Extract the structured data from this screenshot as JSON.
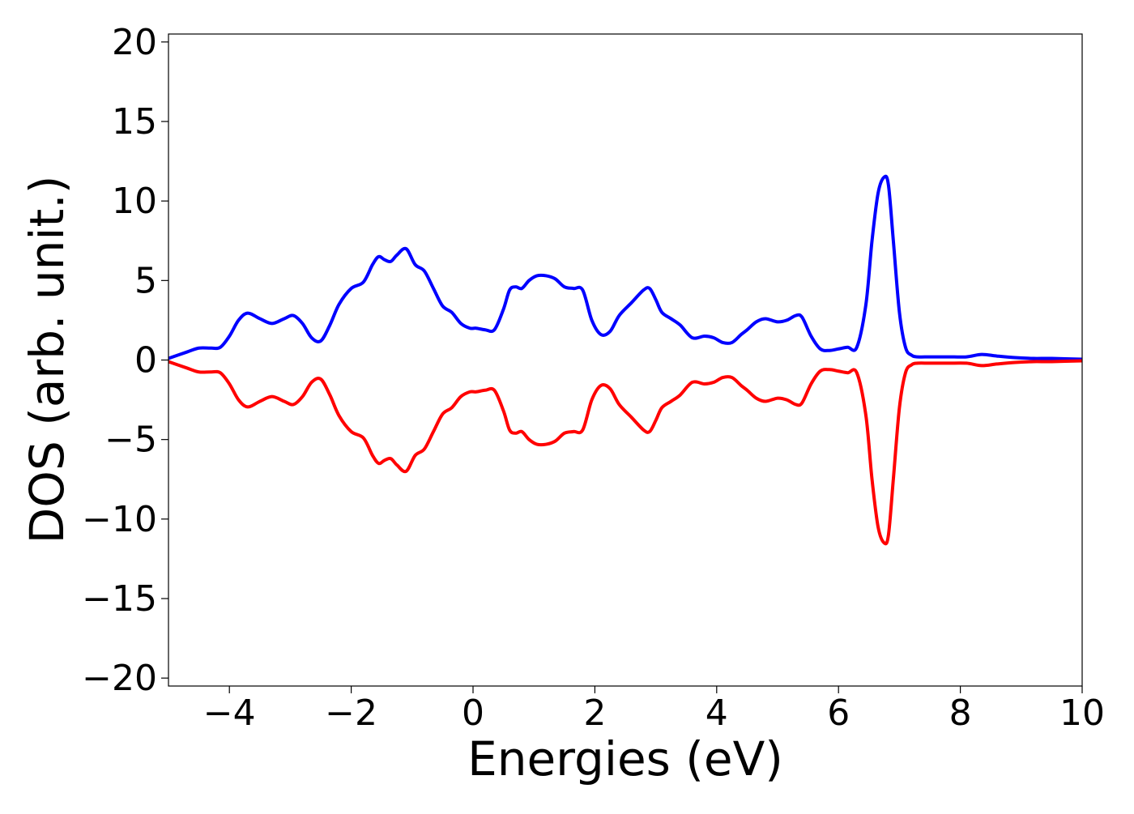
{
  "chart_data": {
    "type": "line",
    "title": "",
    "xlabel": "Energies (eV)",
    "ylabel": "DOS (arb. unit.)",
    "xlim": [
      -5,
      10
    ],
    "ylim": [
      -20.5,
      20.5
    ],
    "xticks": [
      -4,
      -2,
      0,
      2,
      4,
      6,
      8,
      10
    ],
    "yticks": [
      -20,
      -15,
      -10,
      -5,
      0,
      5,
      10,
      15,
      20
    ],
    "xtick_labels": [
      "−4",
      "−2",
      "0",
      "2",
      "4",
      "6",
      "8",
      "10"
    ],
    "ytick_labels": [
      "−20",
      "−15",
      "−10",
      "−5",
      "0",
      "5",
      "10",
      "15",
      "20"
    ],
    "grid": false,
    "legend": "none",
    "series": [
      {
        "color": "#0000ff",
        "x": [
          -5.0,
          -4.7,
          -4.5,
          -4.3,
          -4.15,
          -4.0,
          -3.85,
          -3.7,
          -3.5,
          -3.3,
          -3.1,
          -2.95,
          -2.8,
          -2.65,
          -2.5,
          -2.35,
          -2.2,
          -2.0,
          -1.8,
          -1.65,
          -1.55,
          -1.45,
          -1.35,
          -1.25,
          -1.1,
          -0.95,
          -0.8,
          -0.65,
          -0.5,
          -0.35,
          -0.2,
          -0.05,
          0.05,
          0.2,
          0.35,
          0.5,
          0.6,
          0.7,
          0.8,
          0.92,
          1.05,
          1.2,
          1.35,
          1.5,
          1.65,
          1.8,
          1.95,
          2.1,
          2.25,
          2.4,
          2.6,
          2.8,
          2.9,
          3.0,
          3.1,
          3.25,
          3.4,
          3.6,
          3.8,
          3.95,
          4.1,
          4.25,
          4.4,
          4.5,
          4.65,
          4.8,
          5.0,
          5.15,
          5.3,
          5.4,
          5.55,
          5.7,
          5.85,
          6.0,
          6.15,
          6.3,
          6.45,
          6.55,
          6.65,
          6.75,
          6.82,
          6.9,
          7.0,
          7.1,
          7.2,
          7.3,
          7.5,
          7.8,
          8.1,
          8.35,
          8.6,
          8.9,
          9.2,
          9.5,
          10.0
        ],
        "values": [
          0.1,
          0.5,
          0.75,
          0.75,
          0.8,
          1.5,
          2.5,
          2.95,
          2.6,
          2.3,
          2.6,
          2.8,
          2.3,
          1.4,
          1.2,
          2.2,
          3.5,
          4.5,
          4.9,
          6.0,
          6.5,
          6.3,
          6.2,
          6.6,
          7.0,
          6.0,
          5.6,
          4.5,
          3.4,
          3.0,
          2.3,
          2.0,
          2.0,
          1.9,
          1.9,
          3.2,
          4.4,
          4.6,
          4.5,
          5.0,
          5.3,
          5.3,
          5.1,
          4.6,
          4.5,
          4.4,
          2.5,
          1.6,
          1.8,
          2.8,
          3.6,
          4.4,
          4.5,
          3.8,
          3.0,
          2.6,
          2.2,
          1.4,
          1.5,
          1.4,
          1.1,
          1.1,
          1.6,
          1.9,
          2.4,
          2.6,
          2.4,
          2.5,
          2.8,
          2.7,
          1.5,
          0.7,
          0.6,
          0.7,
          0.8,
          0.8,
          3.5,
          7.5,
          10.5,
          11.5,
          11.0,
          7.5,
          3.0,
          0.8,
          0.3,
          0.2,
          0.2,
          0.2,
          0.2,
          0.35,
          0.25,
          0.15,
          0.1,
          0.1,
          0.05
        ]
      },
      {
        "color": "#ff0000",
        "x": [
          -5.0,
          -4.7,
          -4.5,
          -4.3,
          -4.15,
          -4.0,
          -3.85,
          -3.7,
          -3.5,
          -3.3,
          -3.1,
          -2.95,
          -2.8,
          -2.65,
          -2.5,
          -2.35,
          -2.2,
          -2.0,
          -1.8,
          -1.65,
          -1.55,
          -1.45,
          -1.35,
          -1.25,
          -1.1,
          -0.95,
          -0.8,
          -0.65,
          -0.5,
          -0.35,
          -0.2,
          -0.05,
          0.05,
          0.2,
          0.35,
          0.5,
          0.6,
          0.7,
          0.8,
          0.92,
          1.05,
          1.2,
          1.35,
          1.5,
          1.65,
          1.8,
          1.95,
          2.1,
          2.25,
          2.4,
          2.6,
          2.8,
          2.9,
          3.0,
          3.1,
          3.25,
          3.4,
          3.6,
          3.8,
          3.95,
          4.1,
          4.25,
          4.4,
          4.5,
          4.65,
          4.8,
          5.0,
          5.15,
          5.3,
          5.4,
          5.55,
          5.7,
          5.85,
          6.0,
          6.15,
          6.3,
          6.45,
          6.55,
          6.65,
          6.75,
          6.82,
          6.9,
          7.0,
          7.1,
          7.2,
          7.3,
          7.5,
          7.8,
          8.1,
          8.35,
          8.6,
          8.9,
          9.2,
          9.5,
          10.0
        ],
        "values": [
          -0.1,
          -0.5,
          -0.75,
          -0.75,
          -0.8,
          -1.5,
          -2.5,
          -2.95,
          -2.6,
          -2.3,
          -2.6,
          -2.8,
          -2.3,
          -1.4,
          -1.2,
          -2.2,
          -3.5,
          -4.5,
          -4.9,
          -6.0,
          -6.5,
          -6.3,
          -6.2,
          -6.6,
          -7.0,
          -6.0,
          -5.6,
          -4.5,
          -3.4,
          -3.0,
          -2.3,
          -2.0,
          -2.0,
          -1.9,
          -1.9,
          -3.2,
          -4.4,
          -4.6,
          -4.5,
          -5.0,
          -5.3,
          -5.3,
          -5.1,
          -4.6,
          -4.5,
          -4.4,
          -2.5,
          -1.6,
          -1.8,
          -2.8,
          -3.6,
          -4.4,
          -4.5,
          -3.8,
          -3.0,
          -2.6,
          -2.2,
          -1.4,
          -1.5,
          -1.4,
          -1.1,
          -1.1,
          -1.6,
          -1.9,
          -2.4,
          -2.6,
          -2.4,
          -2.5,
          -2.8,
          -2.7,
          -1.5,
          -0.7,
          -0.6,
          -0.7,
          -0.8,
          -0.8,
          -3.5,
          -7.5,
          -10.5,
          -11.5,
          -11.0,
          -7.5,
          -3.0,
          -0.8,
          -0.3,
          -0.2,
          -0.2,
          -0.2,
          -0.2,
          -0.35,
          -0.25,
          -0.15,
          -0.1,
          -0.1,
          -0.05
        ]
      }
    ]
  }
}
